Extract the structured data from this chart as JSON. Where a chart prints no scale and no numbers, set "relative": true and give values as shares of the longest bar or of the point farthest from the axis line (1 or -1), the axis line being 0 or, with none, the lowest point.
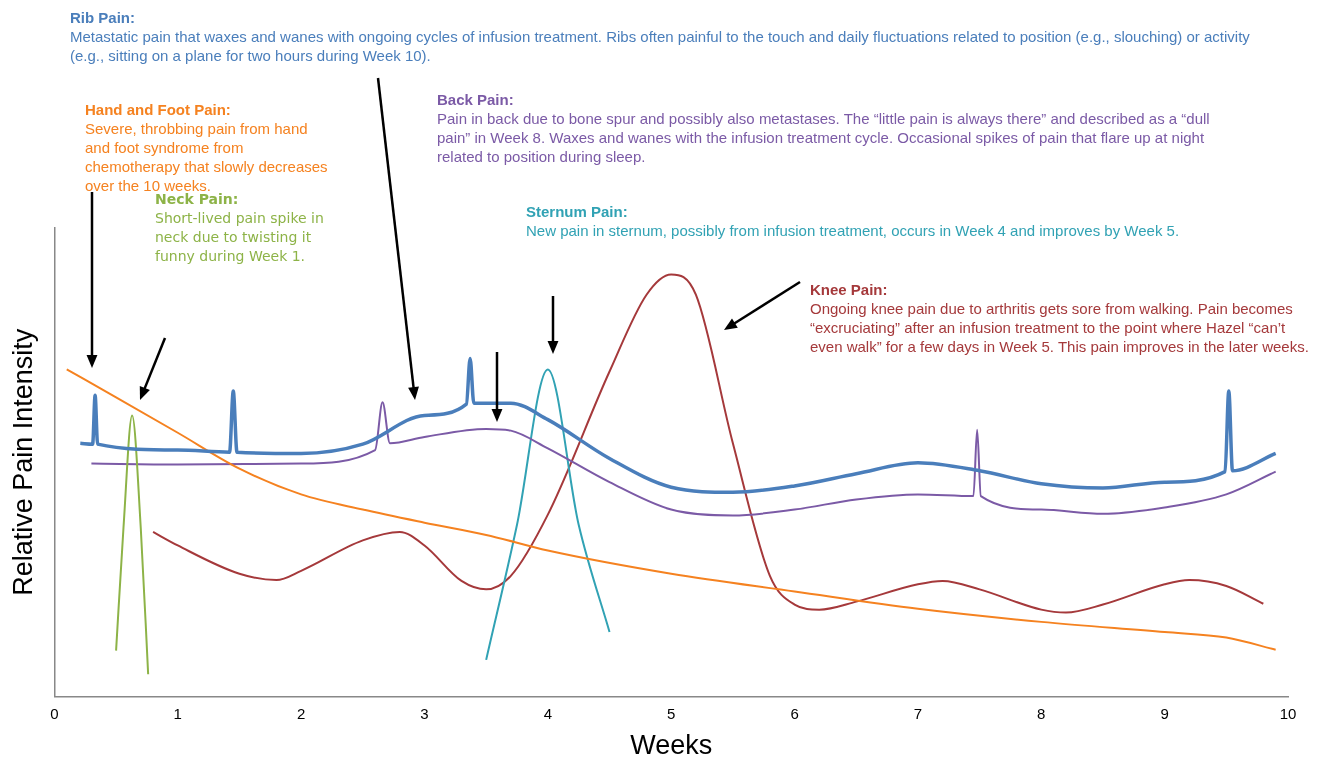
{
  "chart_data": {
    "type": "line",
    "relative": true,
    "xlabel": "Weeks",
    "ylabel": "Relative Pain Intensity",
    "xlim": [
      0,
      10
    ],
    "xticks": [
      0,
      1,
      2,
      3,
      4,
      5,
      6,
      7,
      8,
      9,
      10
    ],
    "grid": false,
    "legend": false,
    "marker": "none",
    "line_style": "solid",
    "series": [
      {
        "name": "Rib Pain:",
        "color": "#4a7ebb",
        "x": [
          0.21,
          0.31,
          0.33,
          0.35,
          1,
          1.42,
          1.45,
          1.48,
          2,
          2.5,
          3,
          3.34,
          3.37,
          3.4,
          3.7,
          4,
          4.5,
          5,
          5.5,
          6,
          6.5,
          7,
          7.5,
          8,
          8.5,
          9,
          9.49,
          9.52,
          9.55,
          9.9
        ],
        "values": [
          0.6,
          0.598,
          0.714,
          0.598,
          0.584,
          0.579,
          0.724,
          0.579,
          0.576,
          0.598,
          0.666,
          0.693,
          0.801,
          0.695,
          0.695,
          0.656,
          0.564,
          0.496,
          0.484,
          0.499,
          0.528,
          0.554,
          0.535,
          0.504,
          0.494,
          0.508,
          0.533,
          0.724,
          0.535,
          0.576
        ]
      },
      {
        "name": "Hand and Foot Pain:",
        "color": "#f58220",
        "x": [
          0.1,
          0.5,
          1,
          1.5,
          2,
          2.5,
          3,
          3.5,
          4,
          5,
          6,
          7,
          8,
          9,
          9.5,
          9.9
        ],
        "values": [
          0.775,
          0.709,
          0.625,
          0.54,
          0.479,
          0.443,
          0.412,
          0.383,
          0.346,
          0.291,
          0.249,
          0.208,
          0.177,
          0.153,
          0.14,
          0.111
        ]
      },
      {
        "name": "Neck Pain:",
        "color": "#8db347",
        "x": [
          0.5,
          0.56,
          0.63,
          0.7,
          0.76
        ],
        "values": [
          0.109,
          0.4,
          0.666,
          0.4,
          0.053
        ]
      },
      {
        "name": "Back Pain:",
        "color": "#7b5aa6",
        "x": [
          0.3,
          1,
          2,
          2.6,
          2.66,
          2.72,
          3,
          3.5,
          3.7,
          4,
          4.5,
          5,
          5.5,
          6,
          6.5,
          7,
          7.45,
          7.48,
          7.51,
          8,
          8.5,
          9,
          9.5,
          9.9
        ],
        "values": [
          0.552,
          0.55,
          0.552,
          0.584,
          0.697,
          0.6,
          0.615,
          0.634,
          0.63,
          0.588,
          0.508,
          0.443,
          0.429,
          0.443,
          0.467,
          0.479,
          0.475,
          0.632,
          0.475,
          0.443,
          0.433,
          0.448,
          0.479,
          0.533
        ]
      },
      {
        "name": "Sternum Pain:",
        "color": "#31a2b4",
        "x": [
          3.5,
          3.75,
          4,
          4.25,
          4.5
        ],
        "values": [
          0.087,
          0.407,
          0.775,
          0.407,
          0.153
        ]
      },
      {
        "name": "Knee Pain:",
        "color": "#a5393b",
        "x": [
          0.8,
          1,
          1.5,
          1.8,
          2,
          2.5,
          2.8,
          3,
          3.3,
          3.5,
          3.7,
          4,
          4.5,
          4.8,
          5,
          5.2,
          5.5,
          5.8,
          6,
          6.2,
          6.5,
          7,
          7.2,
          7.5,
          8,
          8.2,
          8.5,
          9,
          9.2,
          9.5,
          9.8
        ],
        "values": [
          0.39,
          0.358,
          0.291,
          0.276,
          0.298,
          0.37,
          0.39,
          0.358,
          0.274,
          0.254,
          0.286,
          0.431,
          0.77,
          0.952,
          1,
          0.952,
          0.6,
          0.286,
          0.218,
          0.206,
          0.225,
          0.266,
          0.274,
          0.254,
          0.206,
          0.199,
          0.218,
          0.266,
          0.276,
          0.262,
          0.22
        ]
      }
    ],
    "annotations": [
      "Metastatic pain that waxes and wanes with ongoing cycles of infusion treatment. Ribs often painful to the touch and daily fluctuations related to position (e.g., slouching) or activity (e.g., sitting on a plane for two hours during Week 10).",
      "Severe, throbbing pain from hand and foot syndrome from chemotherapy that slowly decreases over the 10 weeks.",
      "Short-lived pain spike in neck due to twisting it funny during Week 1.",
      "Pain in back due to bone spur and possibly also metastases.  The “little pain is always there” and described as a “dull pain” in Week 8.  Waxes and wanes with the infusion treatment cycle. Occasional spikes of pain that flare up at night related to position during sleep.",
      "New pain in sternum, possibly from infusion treatment, occurs in Week 4 and improves by Week 5.",
      "Ongoing knee pain due to arthritis gets sore from walking. Pain becomes “excruciating” after an infusion treatment to the point where Hazel “can’t even walk” for a few days in Week 5. This pain improves in the later weeks."
    ]
  }
}
